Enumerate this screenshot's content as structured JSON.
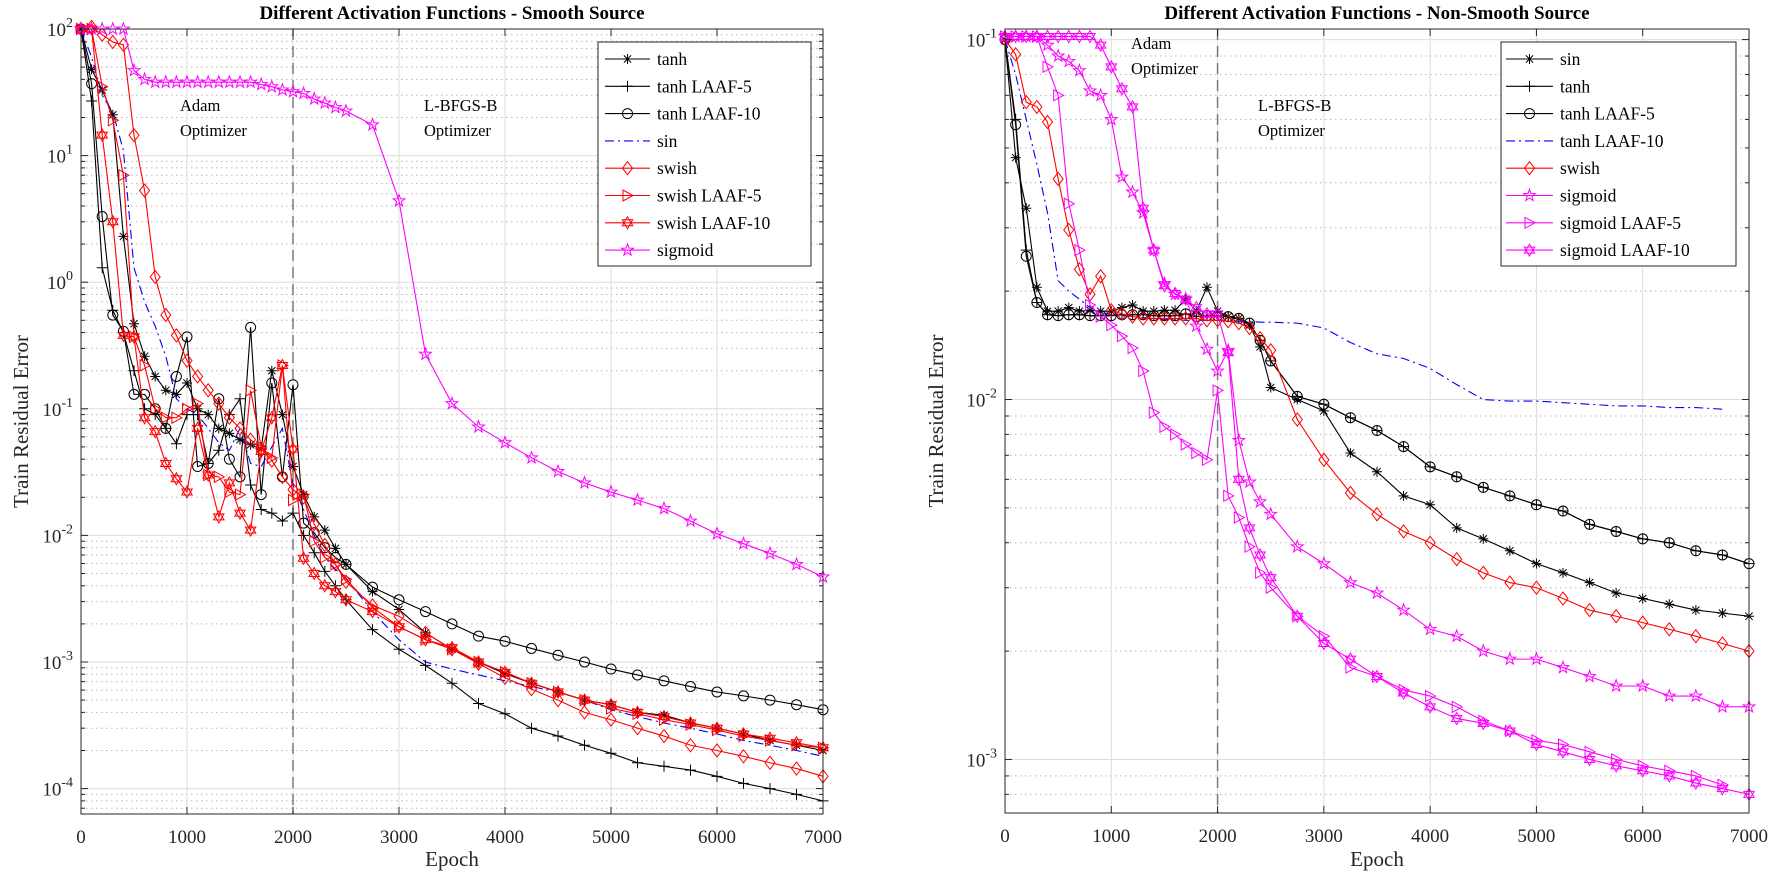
{
  "chart_data": [
    {
      "type": "line",
      "title": "Different Activation Functions - Smooth Source",
      "xlabel": "Epoch",
      "ylabel": "Train Residual Error",
      "xscale": "linear",
      "yscale": "log",
      "xlim": [
        0,
        7000
      ],
      "ylim": [
        6.3e-05,
        100
      ],
      "x_ticks": [
        "0",
        "1000",
        "2000",
        "3000",
        "4000",
        "5000",
        "6000",
        "7000"
      ],
      "y_tick_base": "10",
      "y_tick_exponents": [
        "2",
        "1",
        "0",
        "-1",
        "-2",
        "-3",
        "-4"
      ],
      "grid": "major and minor",
      "legend_position": "top-right",
      "vertical_marker_epoch": 2000,
      "annotations": [
        {
          "lines": [
            "Adam",
            "Optimizer"
          ]
        },
        {
          "lines": [
            "L-BFGS-B",
            "Optimizer"
          ]
        }
      ],
      "x": [
        0,
        100,
        200,
        300,
        400,
        500,
        600,
        700,
        800,
        900,
        1000,
        1100,
        1200,
        1300,
        1400,
        1500,
        1600,
        1700,
        1800,
        1900,
        2000,
        2100,
        2200,
        2300,
        2400,
        2500,
        2750,
        3000,
        3250,
        3500,
        3750,
        4000,
        4250,
        4500,
        4750,
        5000,
        5250,
        5500,
        5750,
        6000,
        6250,
        6500,
        6750,
        7000
      ],
      "series": [
        {
          "name": "tanh",
          "color": "#000000",
          "line": "solid",
          "marker": "asterisk",
          "values": [
            100,
            48,
            33,
            21,
            2.3,
            0.47,
            0.26,
            0.18,
            0.14,
            0.13,
            0.16,
            0.1,
            0.09,
            0.07,
            0.064,
            0.057,
            0.052,
            0.048,
            0.2,
            0.09,
            0.035,
            0.021,
            0.014,
            0.011,
            0.0079,
            0.0059,
            0.0036,
            0.0026,
            0.0017,
            0.00126,
            0.001,
            0.00081,
            0.00068,
            0.00058,
            0.0005,
            0.00046,
            0.0004,
            0.00038,
            0.00033,
            0.0003,
            0.00027,
            0.00024,
            0.00022,
            0.0002
          ]
        },
        {
          "name": "tanh LAAF-5",
          "color": "#000000",
          "line": "solid",
          "marker": "plus",
          "values": [
            100,
            27,
            1.3,
            0.6,
            0.4,
            0.2,
            0.1,
            0.09,
            0.07,
            0.053,
            0.09,
            0.09,
            0.037,
            0.047,
            0.09,
            0.12,
            0.025,
            0.016,
            0.015,
            0.013,
            0.015,
            0.01,
            0.0073,
            0.0052,
            0.004,
            0.0031,
            0.0018,
            0.00126,
            0.00094,
            0.00068,
            0.00047,
            0.00039,
            0.0003,
            0.00026,
            0.00022,
            0.00019,
            0.00016,
            0.00015,
            0.00014,
            0.000125,
            0.00011,
            0.0001,
            9e-05,
            8e-05
          ]
        },
        {
          "name": "tanh LAAF-10",
          "color": "#000000",
          "line": "solid",
          "marker": "circle",
          "values": [
            100,
            37,
            3.3,
            0.55,
            0.41,
            0.13,
            0.13,
            0.1,
            0.07,
            0.18,
            0.37,
            0.035,
            0.037,
            0.12,
            0.04,
            0.029,
            0.44,
            0.021,
            0.16,
            0.029,
            0.155,
            0.0125,
            0.0105,
            0.008,
            0.0067,
            0.0059,
            0.0039,
            0.0031,
            0.0025,
            0.002,
            0.0016,
            0.00146,
            0.00128,
            0.00113,
            0.001,
            0.00088,
            0.00079,
            0.00071,
            0.00064,
            0.00058,
            0.00054,
            0.0005,
            0.00046,
            0.00042
          ]
        },
        {
          "name": "sin",
          "color": "#0000ff",
          "line": "dashdot",
          "marker": "none",
          "values": [
            100,
            60,
            30,
            22,
            11,
            1.3,
            0.7,
            0.45,
            0.26,
            0.12,
            0.1,
            0.09,
            0.07,
            0.054,
            0.047,
            0.07,
            0.037,
            0.035,
            0.05,
            0.07,
            0.025,
            0.016,
            0.01,
            0.0067,
            0.0054,
            0.0046,
            0.0025,
            0.0015,
            0.001,
            0.00088,
            0.00079,
            0.00071,
            0.00064,
            0.00058,
            0.0005,
            0.00042,
            0.00037,
            0.00033,
            0.0003,
            0.00027,
            0.00024,
            0.00022,
            0.0002,
            0.00018
          ]
        },
        {
          "name": "swish",
          "color": "#ff0000",
          "line": "solid",
          "marker": "diamond",
          "values": [
            100,
            104,
            90,
            79,
            75,
            14.5,
            5.3,
            1.1,
            0.55,
            0.38,
            0.24,
            0.18,
            0.14,
            0.11,
            0.085,
            0.07,
            0.057,
            0.048,
            0.039,
            0.029,
            0.023,
            0.02,
            0.0123,
            0.0084,
            0.0059,
            0.0043,
            0.0028,
            0.0023,
            0.0017,
            0.00126,
            0.00097,
            0.00075,
            0.00061,
            0.0005,
            0.0004,
            0.00035,
            0.0003,
            0.00026,
            0.00022,
            0.0002,
            0.00018,
            0.00016,
            0.000144,
            0.000125
          ]
        },
        {
          "name": "swish LAAF-5",
          "color": "#ff0000",
          "line": "solid",
          "marker": "triangle-right",
          "values": [
            100,
            100,
            35,
            19,
            7,
            0.37,
            0.22,
            0.1,
            0.085,
            0.085,
            0.1,
            0.11,
            0.03,
            0.029,
            0.022,
            0.021,
            0.14,
            0.05,
            0.041,
            0.22,
            0.019,
            0.021,
            0.009,
            0.0067,
            0.0059,
            0.0045,
            0.0027,
            0.0019,
            0.0015,
            0.00126,
            0.001,
            0.00083,
            0.00068,
            0.00058,
            0.0005,
            0.00043,
            0.00039,
            0.00035,
            0.00032,
            0.00029,
            0.00026,
            0.00024,
            0.00022,
            0.00021
          ]
        },
        {
          "name": "swish LAAF-10",
          "color": "#ff0000",
          "line": "solid",
          "marker": "hexagram",
          "values": [
            100,
            100,
            14.5,
            3,
            0.38,
            0.37,
            0.085,
            0.066,
            0.037,
            0.028,
            0.022,
            0.07,
            0.03,
            0.014,
            0.026,
            0.015,
            0.011,
            0.046,
            0.085,
            0.22,
            0.048,
            0.0066,
            0.005,
            0.004,
            0.0036,
            0.0031,
            0.0025,
            0.0019,
            0.0015,
            0.0013,
            0.001,
            0.00083,
            0.00068,
            0.00058,
            0.0005,
            0.00046,
            0.0004,
            0.00037,
            0.00033,
            0.0003,
            0.00027,
            0.00025,
            0.00023,
            0.00021
          ]
        },
        {
          "name": "sigmoid",
          "color": "#ff00ff",
          "line": "solid",
          "marker": "pentagram",
          "values": [
            100,
            100,
            100,
            100,
            100,
            47,
            40,
            38,
            38,
            38,
            38,
            38,
            38,
            38,
            38,
            38,
            38,
            36.5,
            35,
            33,
            32,
            31,
            28,
            26,
            24,
            22.5,
            17.5,
            4.4,
            0.27,
            0.11,
            0.072,
            0.054,
            0.041,
            0.032,
            0.026,
            0.022,
            0.019,
            0.0163,
            0.013,
            0.0103,
            0.0086,
            0.0072,
            0.0059,
            0.0047
          ]
        }
      ]
    },
    {
      "type": "line",
      "title": "Different Activation Functions - Non-Smooth Source",
      "xlabel": "Epoch",
      "ylabel": "Train Residual Error",
      "xscale": "linear",
      "yscale": "log",
      "xlim": [
        0,
        7000
      ],
      "ylim": [
        0.00071,
        0.107
      ],
      "x_ticks": [
        "0",
        "1000",
        "2000",
        "3000",
        "4000",
        "5000",
        "6000",
        "7000"
      ],
      "y_tick_base": "10",
      "y_tick_exponents": [
        "-1",
        "-2",
        "-3"
      ],
      "grid": "major and minor",
      "legend_position": "top-right",
      "vertical_marker_epoch": 2000,
      "annotations": [
        {
          "lines": [
            "Adam",
            "Optimizer"
          ]
        },
        {
          "lines": [
            "L-BFGS-B",
            "Optimizer"
          ]
        }
      ],
      "x": [
        0,
        100,
        200,
        300,
        400,
        500,
        600,
        700,
        800,
        900,
        1000,
        1100,
        1200,
        1300,
        1400,
        1500,
        1600,
        1700,
        1800,
        1900,
        2000,
        2100,
        2200,
        2300,
        2400,
        2500,
        2750,
        3000,
        3250,
        3500,
        3750,
        4000,
        4250,
        4500,
        4750,
        5000,
        5250,
        5500,
        5750,
        6000,
        6250,
        6500,
        6750,
        7000
      ],
      "series": [
        {
          "name": "sin",
          "color": "#000000",
          "line": "solid",
          "marker": "asterisk",
          "values": [
            0.1,
            0.047,
            0.034,
            0.0205,
            0.0176,
            0.0176,
            0.018,
            0.0176,
            0.0177,
            0.0176,
            0.0176,
            0.018,
            0.0183,
            0.0176,
            0.0176,
            0.0177,
            0.0177,
            0.019,
            0.0176,
            0.0205,
            0.0176,
            0.017,
            0.0168,
            0.0161,
            0.014,
            0.0108,
            0.01,
            0.0093,
            0.0071,
            0.0063,
            0.0054,
            0.0051,
            0.0044,
            0.0041,
            0.0038,
            0.0035,
            0.0033,
            0.0031,
            0.0029,
            0.0028,
            0.0027,
            0.0026,
            0.00255,
            0.0025
          ]
        },
        {
          "name": "tanh",
          "color": "#000000",
          "line": "solid",
          "marker": "plus",
          "values": [
            0.1,
            0.06,
            0.026,
            0.0186,
            0.0172,
            0.0171,
            0.0172,
            0.0172,
            0.0171,
            0.0171,
            0.0171,
            0.0172,
            0.0172,
            0.0172,
            0.0171,
            0.0171,
            0.0171,
            0.0173,
            0.017,
            0.0171,
            0.0171,
            0.017,
            0.0168,
            0.0163,
            0.0146,
            0.0128,
            0.0102,
            0.0097,
            0.0089,
            0.0082,
            0.0074,
            0.0065,
            0.0061,
            0.0057,
            0.0054,
            0.0051,
            0.0049,
            0.0045,
            0.0043,
            0.0041,
            0.004,
            0.0038,
            0.0037,
            0.0035
          ]
        },
        {
          "name": "tanh LAAF-5",
          "color": "#000000",
          "line": "solid",
          "marker": "circle",
          "values": [
            0.1,
            0.058,
            0.025,
            0.0186,
            0.0172,
            0.0171,
            0.0172,
            0.0172,
            0.0171,
            0.0171,
            0.0171,
            0.0172,
            0.0172,
            0.0172,
            0.0171,
            0.0171,
            0.0171,
            0.0173,
            0.017,
            0.0171,
            0.0171,
            0.017,
            0.0168,
            0.0163,
            0.0146,
            0.0128,
            0.0102,
            0.0097,
            0.0089,
            0.0082,
            0.0074,
            0.0065,
            0.0061,
            0.0057,
            0.0054,
            0.0051,
            0.0049,
            0.0045,
            0.0043,
            0.0041,
            0.004,
            0.0038,
            0.0037,
            0.0035
          ]
        },
        {
          "name": "tanh LAAF-10",
          "color": "#0000ff",
          "line": "dashdot",
          "marker": "none",
          "values": [
            0.1,
            0.08,
            0.06,
            0.045,
            0.033,
            0.0214,
            0.02,
            0.019,
            0.018,
            0.0175,
            0.0172,
            0.0171,
            0.017,
            0.0169,
            0.0168,
            0.0167,
            0.0167,
            0.0166,
            0.0166,
            0.0166,
            0.0166,
            0.0165,
            0.0165,
            0.0165,
            0.0164,
            0.0164,
            0.0163,
            0.0158,
            0.0144,
            0.0134,
            0.013,
            0.0122,
            0.011,
            0.01,
            0.0099,
            0.0099,
            0.0098,
            0.0097,
            0.0096,
            0.0096,
            0.0095,
            0.0095,
            0.0094,
            null
          ]
        },
        {
          "name": "swish",
          "color": "#ff0000",
          "line": "solid",
          "marker": "diamond",
          "values": [
            0.1,
            0.091,
            0.067,
            0.065,
            0.059,
            0.041,
            0.0296,
            0.023,
            0.0196,
            0.022,
            0.0177,
            0.0173,
            0.017,
            0.0168,
            0.0168,
            0.0168,
            0.0168,
            0.0168,
            0.0168,
            0.0166,
            0.0166,
            0.0165,
            0.0163,
            0.0158,
            0.0148,
            0.0137,
            0.0088,
            0.0068,
            0.0055,
            0.0048,
            0.0043,
            0.004,
            0.0036,
            0.0033,
            0.0031,
            0.003,
            0.0028,
            0.0026,
            0.0025,
            0.0024,
            0.0023,
            0.0022,
            0.0021,
            0.002
          ]
        },
        {
          "name": "sigmoid",
          "color": "#ff00ff",
          "line": "solid",
          "marker": "pentagram",
          "values": [
            0.102,
            0.102,
            0.102,
            0.102,
            0.0965,
            0.09,
            0.087,
            0.082,
            0.072,
            0.07,
            0.06,
            0.0415,
            0.0377,
            0.033,
            0.026,
            0.021,
            0.0196,
            0.019,
            0.016,
            0.0138,
            0.012,
            0.0137,
            0.0077,
            0.0059,
            0.0052,
            0.0048,
            0.0039,
            0.0035,
            0.0031,
            0.0029,
            0.0026,
            0.0023,
            0.0022,
            0.002,
            0.0019,
            0.0019,
            0.0018,
            0.0017,
            0.0016,
            0.0016,
            0.0015,
            0.0015,
            0.0014,
            0.0014
          ]
        },
        {
          "name": "sigmoid LAAF-5",
          "color": "#ff00ff",
          "line": "solid",
          "marker": "triangle-right",
          "values": [
            0.102,
            0.102,
            0.102,
            0.102,
            0.084,
            0.07,
            0.035,
            0.026,
            0.0183,
            0.017,
            0.0161,
            0.015,
            0.0139,
            0.012,
            0.0092,
            0.0084,
            0.008,
            0.0075,
            0.0071,
            0.0068,
            0.0106,
            0.0054,
            0.0047,
            0.0039,
            0.0033,
            0.003,
            0.0025,
            0.0022,
            0.0018,
            0.0017,
            0.00156,
            0.0015,
            0.0014,
            0.00128,
            0.0012,
            0.00113,
            0.0011,
            0.00105,
            0.001,
            0.00096,
            0.00093,
            0.0009,
            0.00085,
            null
          ]
        },
        {
          "name": "sigmoid LAAF-10",
          "color": "#ff00ff",
          "line": "solid",
          "marker": "hexagram",
          "values": [
            0.102,
            0.102,
            0.102,
            0.102,
            0.102,
            0.102,
            0.102,
            0.102,
            0.102,
            0.0965,
            0.084,
            0.073,
            0.065,
            0.034,
            0.026,
            0.0207,
            0.0197,
            0.019,
            0.018,
            0.0173,
            0.0173,
            0.0135,
            0.006,
            0.0044,
            0.0037,
            0.0032,
            0.0025,
            0.0021,
            0.0019,
            0.0017,
            0.00153,
            0.0014,
            0.0013,
            0.00126,
            0.0012,
            0.0011,
            0.00105,
            0.001,
            0.00096,
            0.00093,
            0.0009,
            0.00086,
            0.00083,
            0.0008
          ]
        }
      ]
    }
  ]
}
